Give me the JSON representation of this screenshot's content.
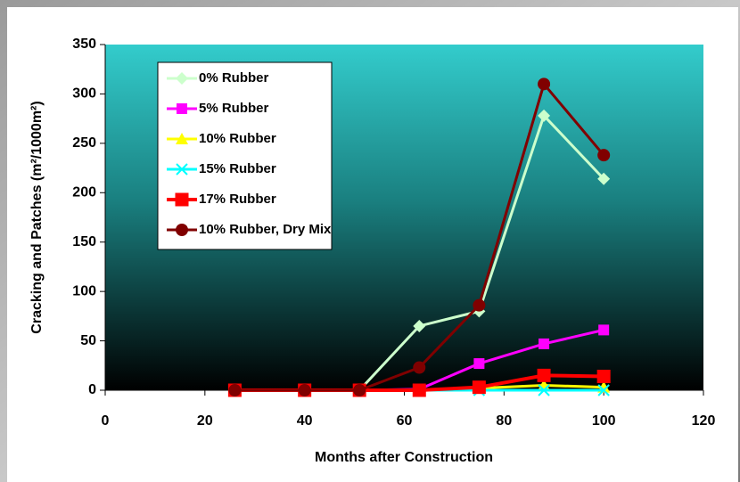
{
  "chart_data": {
    "type": "line",
    "xlabel": "Months after Construction",
    "ylabel": "Cracking and Patches (m²/1000m²)",
    "x": [
      26,
      40,
      51,
      63,
      75,
      88,
      100
    ],
    "xlim": [
      0,
      120
    ],
    "xticks": [
      0,
      20,
      40,
      60,
      80,
      100,
      120
    ],
    "ylim": [
      0,
      350
    ],
    "yticks": [
      0,
      50,
      100,
      150,
      200,
      250,
      300,
      350
    ],
    "legend": "upper left",
    "series": [
      {
        "name": "0% Rubber",
        "color": "#ccffcc",
        "marker": "diamond",
        "values": [
          0,
          0,
          0,
          65,
          80,
          278,
          214
        ]
      },
      {
        "name": "5% Rubber",
        "color": "#ff00ff",
        "marker": "square",
        "values": [
          0,
          0,
          0,
          1,
          27,
          47,
          61
        ]
      },
      {
        "name": "10% Rubber",
        "color": "#ffff00",
        "marker": "triangle",
        "values": [
          0,
          0,
          0,
          0,
          2,
          5,
          3
        ]
      },
      {
        "name": "15% Rubber",
        "color": "#00ffff",
        "marker": "x",
        "values": [
          0,
          0,
          0,
          0,
          0,
          0,
          0
        ]
      },
      {
        "name": "17% Rubber",
        "color": "#ff0000",
        "marker": "bigsquare",
        "values": [
          0,
          0,
          0,
          0,
          3,
          15,
          14
        ]
      },
      {
        "name": "10% Rubber, Dry Mix",
        "color": "#800000",
        "marker": "circle",
        "values": [
          0,
          0,
          0,
          23,
          86,
          310,
          238
        ]
      }
    ]
  }
}
